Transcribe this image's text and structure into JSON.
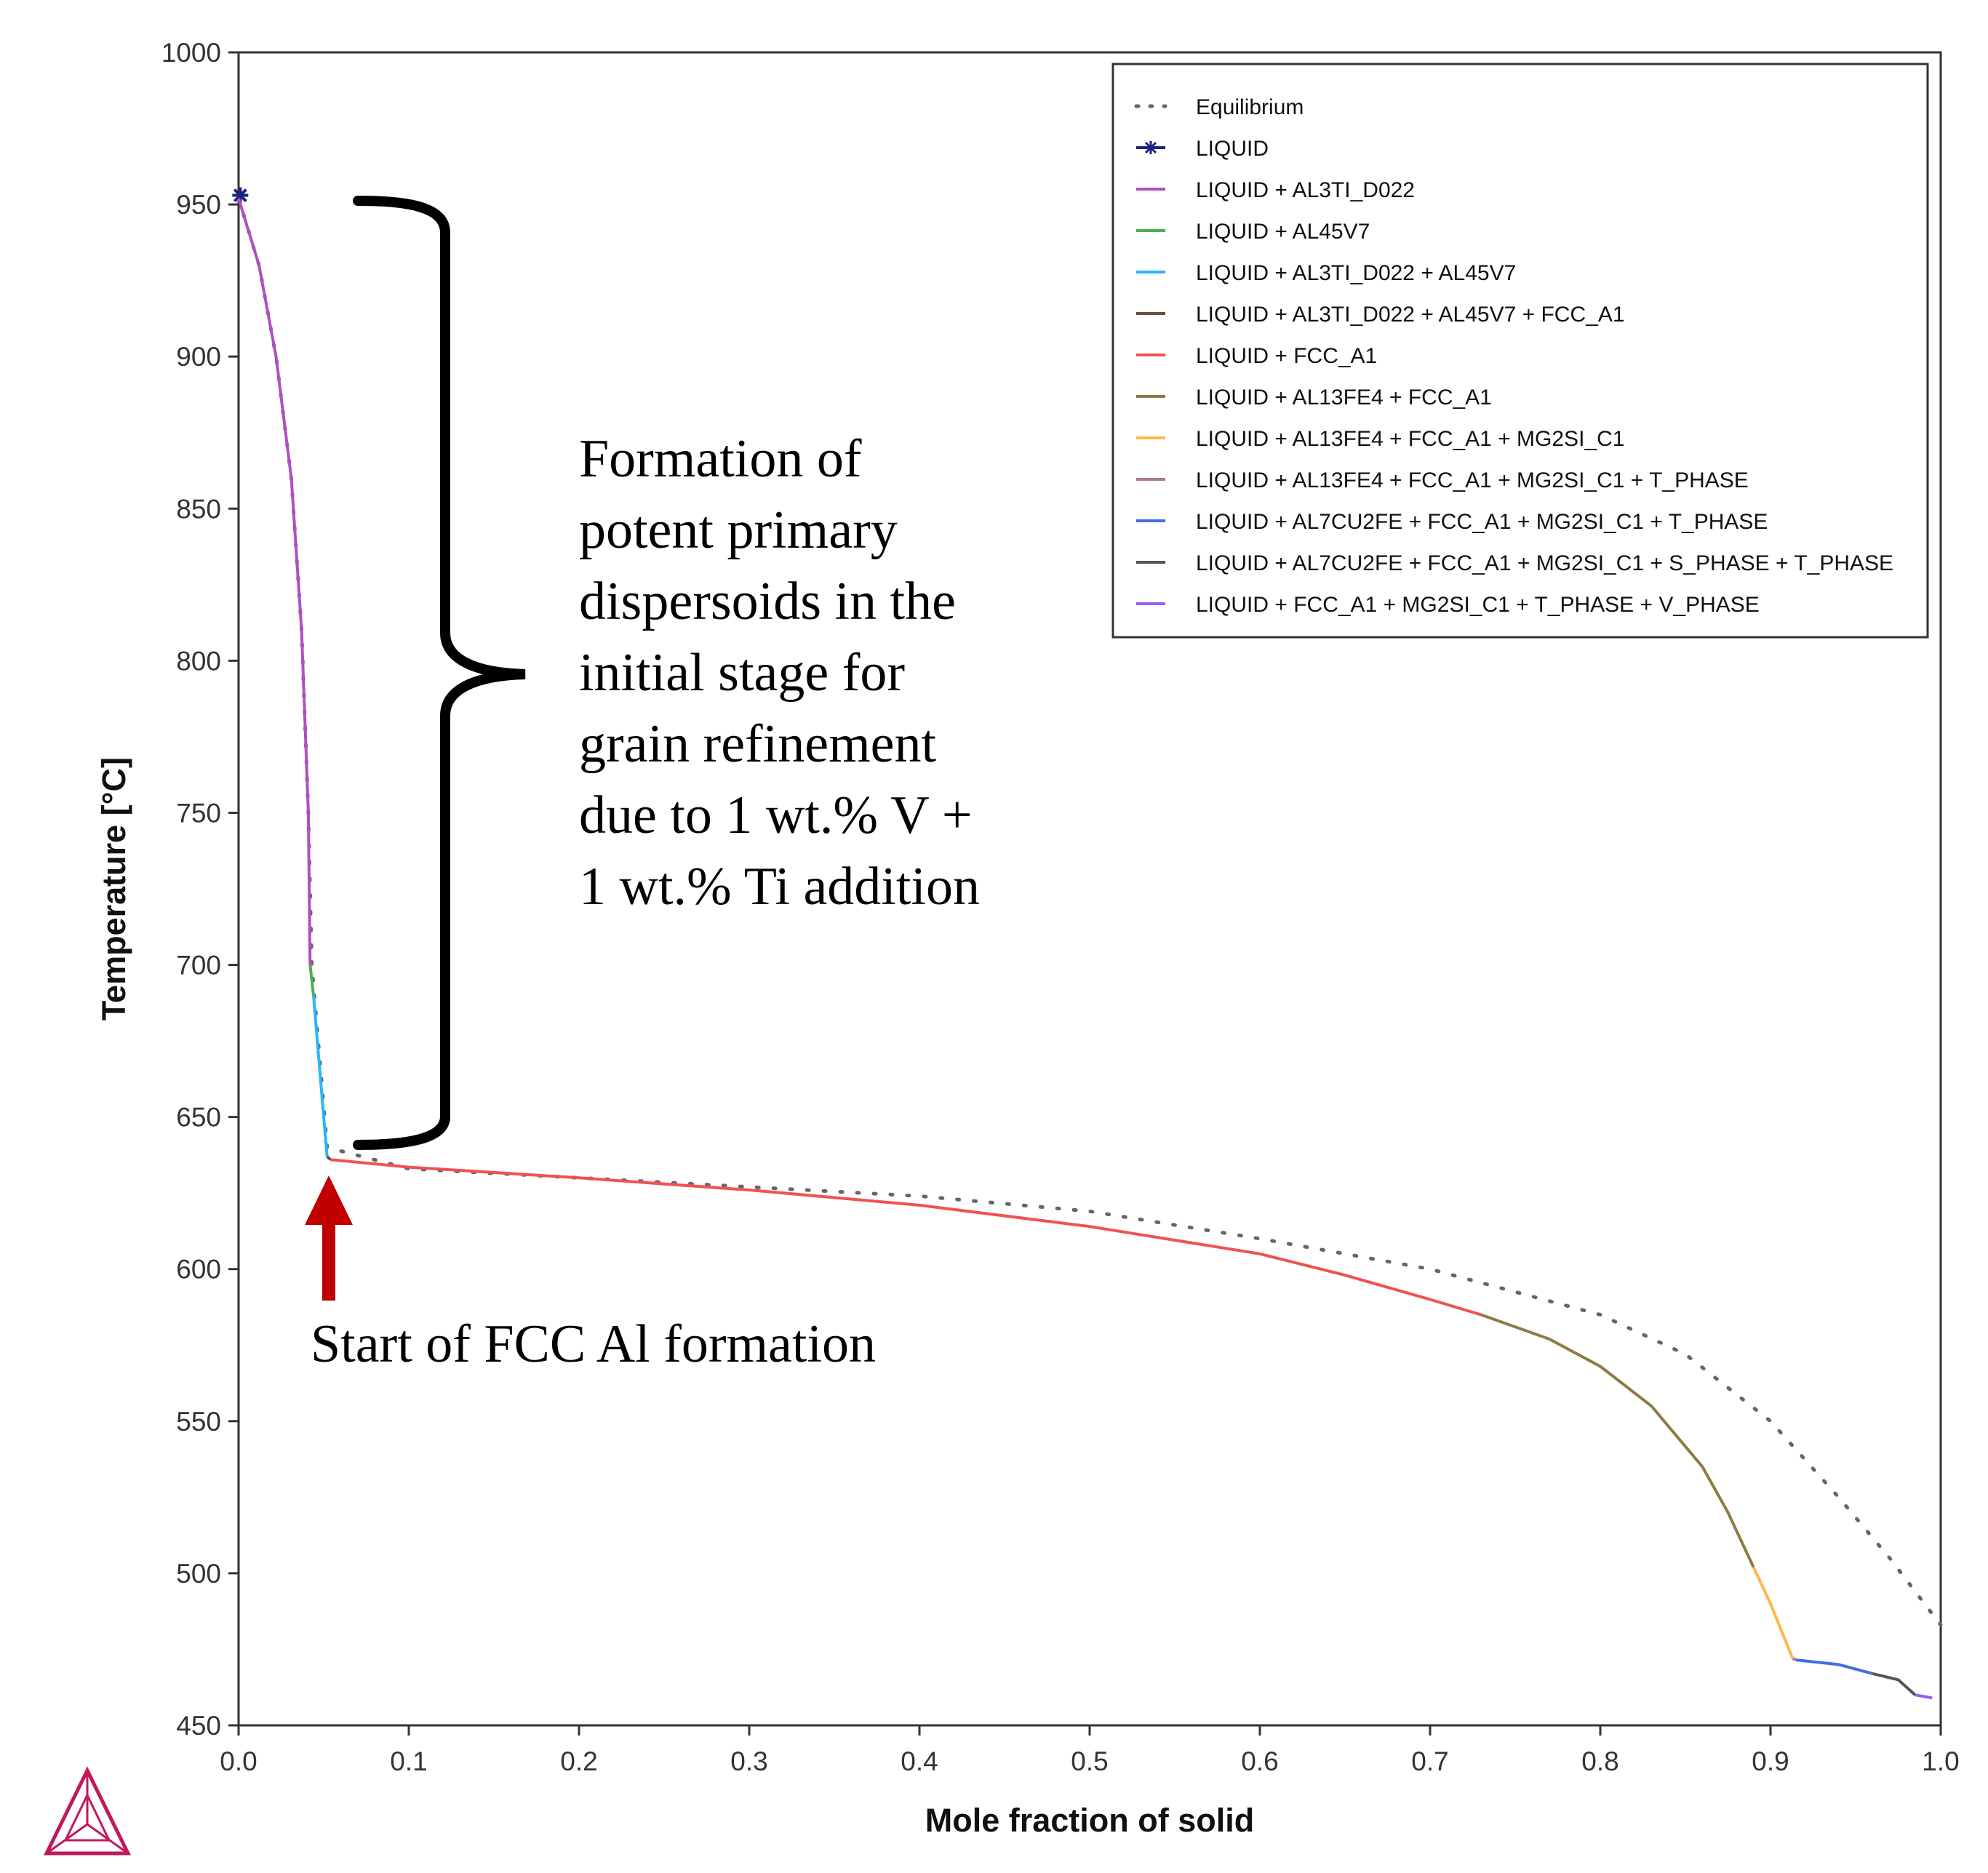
{
  "chart_data": {
    "type": "line",
    "title": "",
    "xlabel": "Mole fraction of solid",
    "ylabel": "Temperature [°C]",
    "xlim": [
      0.0,
      1.0
    ],
    "ylim": [
      450,
      1000
    ],
    "xticks": [
      "0.0",
      "0.1",
      "0.2",
      "0.3",
      "0.4",
      "0.5",
      "0.6",
      "0.7",
      "0.8",
      "0.9",
      "1.0"
    ],
    "yticks": [
      "1000",
      "950",
      "900",
      "850",
      "800",
      "750",
      "700",
      "650",
      "600",
      "550",
      "500",
      "450"
    ],
    "grid": false,
    "legend_position": "top-right",
    "series": [
      {
        "name": "Equilibrium",
        "color": "#666666",
        "style": "dotted",
        "points": [
          [
            0.0,
            952
          ],
          [
            0.012,
            930
          ],
          [
            0.022,
            900
          ],
          [
            0.031,
            860
          ],
          [
            0.037,
            810
          ],
          [
            0.041,
            750
          ],
          [
            0.043,
            700
          ],
          [
            0.046,
            680
          ],
          [
            0.049,
            660
          ],
          [
            0.052,
            640
          ],
          [
            0.1,
            633
          ],
          [
            0.2,
            630
          ],
          [
            0.3,
            627
          ],
          [
            0.4,
            624
          ],
          [
            0.5,
            619
          ],
          [
            0.6,
            610
          ],
          [
            0.7,
            600
          ],
          [
            0.8,
            585
          ],
          [
            0.85,
            572
          ],
          [
            0.9,
            550
          ],
          [
            0.94,
            525
          ],
          [
            0.97,
            505
          ],
          [
            1.0,
            483
          ]
        ]
      },
      {
        "name": "LIQUID",
        "color": "#1a237e",
        "style": "star",
        "points": [
          [
            0.001,
            953
          ]
        ]
      },
      {
        "name": "LIQUID + AL3TI_D022",
        "color": "#b04fc4",
        "style": "solid",
        "points": [
          [
            0.0,
            952
          ],
          [
            0.012,
            930
          ],
          [
            0.022,
            900
          ],
          [
            0.031,
            860
          ],
          [
            0.037,
            810
          ],
          [
            0.041,
            750
          ],
          [
            0.042,
            700
          ]
        ]
      },
      {
        "name": "LIQUID + AL45V7",
        "color": "#4caf50",
        "style": "solid",
        "points": [
          [
            0.042,
            700
          ],
          [
            0.044,
            690
          ]
        ]
      },
      {
        "name": "LIQUID + AL3TI_D022 + AL45V7",
        "color": "#29b6f6",
        "style": "solid",
        "points": [
          [
            0.044,
            690
          ],
          [
            0.047,
            670
          ],
          [
            0.05,
            650
          ],
          [
            0.052,
            637
          ]
        ]
      },
      {
        "name": "LIQUID + AL3TI_D022 + AL45V7 + FCC_A1",
        "color": "#6d4c41",
        "style": "solid",
        "points": [
          [
            0.052,
            637
          ],
          [
            0.054,
            636
          ]
        ]
      },
      {
        "name": "LIQUID + FCC_A1",
        "color": "#ef5350",
        "style": "solid",
        "points": [
          [
            0.054,
            636
          ],
          [
            0.1,
            633.5
          ],
          [
            0.2,
            630
          ],
          [
            0.3,
            626
          ],
          [
            0.4,
            621
          ],
          [
            0.5,
            614
          ],
          [
            0.6,
            605
          ],
          [
            0.65,
            598
          ],
          [
            0.7,
            590
          ],
          [
            0.73,
            585
          ]
        ]
      },
      {
        "name": "LIQUID + AL13FE4 + FCC_A1",
        "color": "#8d7b45",
        "style": "solid",
        "points": [
          [
            0.73,
            585
          ],
          [
            0.77,
            577
          ],
          [
            0.8,
            568
          ],
          [
            0.83,
            555
          ],
          [
            0.86,
            535
          ],
          [
            0.875,
            520
          ],
          [
            0.89,
            502
          ]
        ]
      },
      {
        "name": "LIQUID + AL13FE4 + FCC_A1 + MG2SI_C1",
        "color": "#ffb74d",
        "style": "solid",
        "points": [
          [
            0.89,
            502
          ],
          [
            0.9,
            490
          ],
          [
            0.913,
            472
          ]
        ]
      },
      {
        "name": "LIQUID + AL13FE4 + FCC_A1 + MG2SI_C1 + T_PHASE",
        "color": "#b07a8a",
        "style": "solid",
        "points": [
          [
            0.913,
            472
          ],
          [
            0.915,
            471.5
          ]
        ]
      },
      {
        "name": "LIQUID + AL7CU2FE + FCC_A1 + MG2SI_C1 + T_PHASE",
        "color": "#3f6fe0",
        "style": "solid",
        "points": [
          [
            0.915,
            471.5
          ],
          [
            0.94,
            470
          ],
          [
            0.96,
            467
          ]
        ]
      },
      {
        "name": "LIQUID + AL7CU2FE + FCC_A1 + MG2SI_C1 + S_PHASE + T_PHASE",
        "color": "#555555",
        "style": "solid",
        "points": [
          [
            0.96,
            467
          ],
          [
            0.975,
            465
          ],
          [
            0.985,
            460
          ]
        ]
      },
      {
        "name": "LIQUID + FCC_A1 + MG2SI_C1 + T_PHASE + V_PHASE",
        "color": "#9c5cf5",
        "style": "solid",
        "points": [
          [
            0.985,
            460
          ],
          [
            0.995,
            459
          ]
        ]
      }
    ],
    "annotations": {
      "brace_text": [
        "Formation of",
        "potent primary",
        "dispersoids in the",
        "initial stage for",
        "grain refinement",
        "due to 1 wt.% V +",
        "1 wt.% Ti addition"
      ],
      "arrow_text": "Start of FCC Al formation",
      "arrow_color": "#c00000",
      "brace_range": [
        638,
        952
      ],
      "arrow_x": 0.054
    }
  }
}
